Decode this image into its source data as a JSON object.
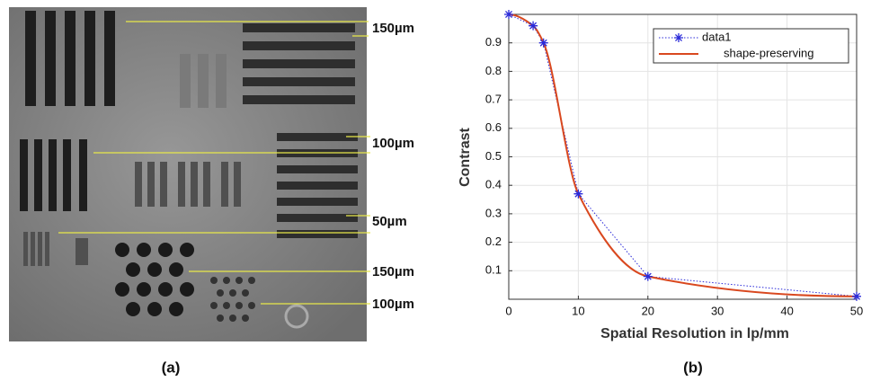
{
  "image_labels": [
    "150µm",
    "100µm",
    "50µm",
    "150µm",
    "100µm"
  ],
  "panel_labels": [
    "(a)",
    "(b)"
  ],
  "chart_data": {
    "type": "line",
    "x_label": "Spatial Resolution in lp/mm",
    "y_label": "Contrast",
    "x": [
      0,
      3.5,
      5,
      10,
      20,
      50
    ],
    "series": [
      {
        "name": "data1",
        "color": "#2b2bd9",
        "values": [
          1.0,
          0.96,
          0.9,
          0.37,
          0.08,
          0.01
        ]
      },
      {
        "name": "shape-preserving",
        "color": "#d9481f",
        "values": [
          1.0,
          0.96,
          0.9,
          0.37,
          0.08,
          0.01
        ]
      }
    ],
    "xlim": [
      0,
      50
    ],
    "xticks": [
      0,
      10,
      20,
      30,
      40,
      50
    ],
    "ylim": [
      0,
      1
    ],
    "yticks": [
      0.1,
      0.2,
      0.3,
      0.4,
      0.5,
      0.6,
      0.7,
      0.8,
      0.9
    ],
    "grid": true,
    "legend": "upper right"
  }
}
